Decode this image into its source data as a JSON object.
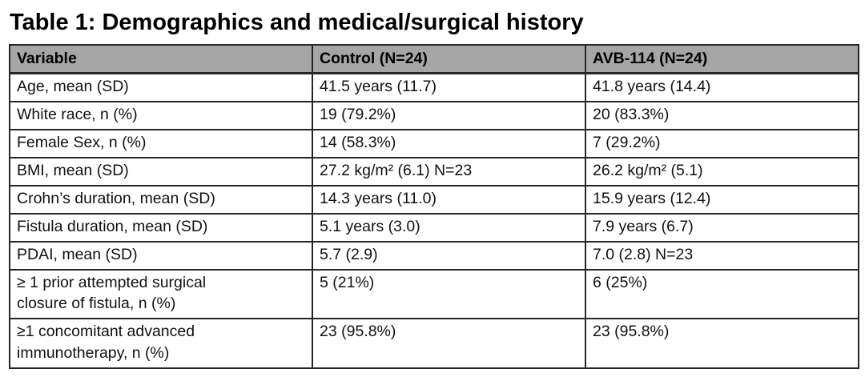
{
  "title": "Table 1: Demographics and medical/surgical history",
  "table": {
    "header_bg": "#a6a6a6",
    "border_color": "#262626",
    "columns": [
      "Variable",
      "Control (N=24)",
      "AVB-114 (N=24)"
    ],
    "rows": [
      [
        "Age, mean (SD)",
        "41.5 years (11.7)",
        "41.8 years (14.4)"
      ],
      [
        "White race, n (%)",
        "19 (79.2%)",
        "20 (83.3%)"
      ],
      [
        "Female Sex, n (%)",
        "14 (58.3%)",
        "7 (29.2%)"
      ],
      [
        "BMI, mean (SD)",
        "27.2 kg/m² (6.1) N=23",
        "26.2 kg/m² (5.1)"
      ],
      [
        "Crohn’s duration, mean (SD)",
        "14.3 years (11.0)",
        "15.9 years (12.4)"
      ],
      [
        "Fistula duration, mean (SD)",
        "5.1 years (3.0)",
        "7.9 years (6.7)"
      ],
      [
        "PDAI, mean (SD)",
        "5.7 (2.9)",
        "7.0 (2.8) N=23"
      ],
      [
        "≥ 1 prior attempted surgical\nclosure of fistula, n (%)",
        "5 (21%)",
        "6 (25%)"
      ],
      [
        "≥1 concomitant advanced\nimmunotherapy, n (%)",
        "23 (95.8%)",
        "23 (95.8%)"
      ]
    ]
  }
}
